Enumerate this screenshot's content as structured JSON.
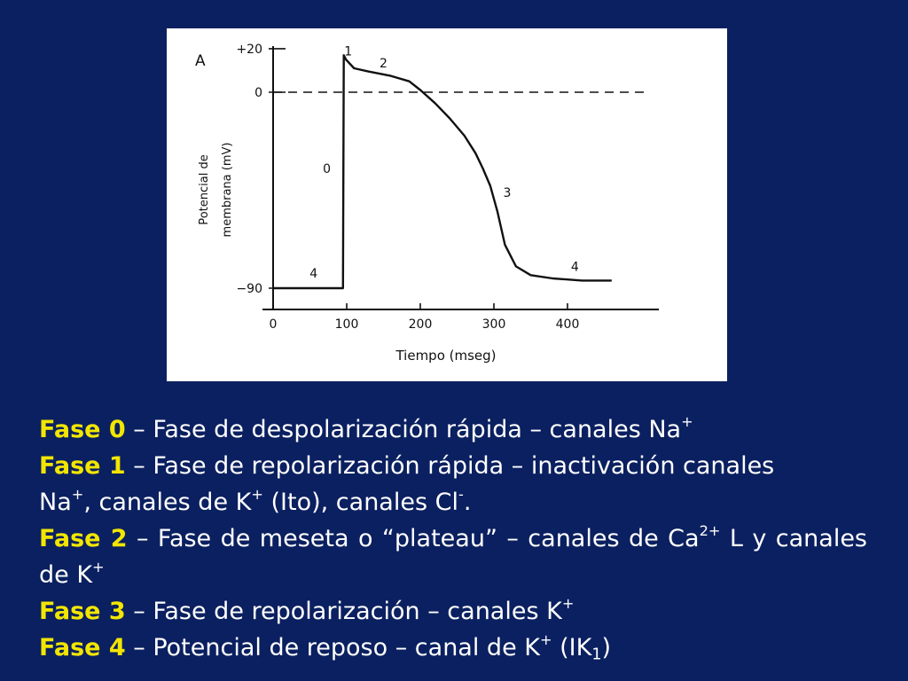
{
  "colors": {
    "background": "#0b2060",
    "phase_label": "#f2e600",
    "text": "#ffffff",
    "curve": "#111111"
  },
  "chart_data": {
    "type": "line",
    "panel_label": "A",
    "xlabel": "Tiempo (mseg)",
    "ylabel_line1": "Potencial de",
    "ylabel_line2": "membrana (mV)",
    "xlim": [
      0,
      500
    ],
    "ylim": [
      -90,
      20
    ],
    "x_ticks": [
      0,
      100,
      200,
      300,
      400
    ],
    "x_tick_labels": [
      "0",
      "100",
      "200",
      "300",
      "400"
    ],
    "y_ticks": [
      20,
      0,
      -90
    ],
    "y_tick_labels": [
      "+20",
      "0",
      "−90"
    ],
    "zero_line": "dashed",
    "grid": false,
    "series": [
      {
        "x": [
          0,
          95,
          96,
          99,
          110,
          130,
          160,
          185,
          200,
          220,
          240,
          260,
          275,
          285,
          295,
          305,
          315,
          330,
          350,
          380,
          400,
          420,
          440,
          460
        ],
        "y": [
          -90,
          -90,
          17,
          15,
          11,
          9.5,
          7.5,
          5,
          1,
          -5,
          -12,
          -20,
          -28,
          -35,
          -43,
          -55,
          -70,
          -80,
          -84,
          -85.5,
          -86,
          -86.5,
          -86.5,
          -86.5
        ]
      }
    ],
    "annotations": [
      {
        "text": "0",
        "x": 73,
        "y": -35
      },
      {
        "text": "1",
        "x": 102,
        "y": 19
      },
      {
        "text": "2",
        "x": 150,
        "y": 13.5
      },
      {
        "text": "3",
        "x": 318,
        "y": -46
      },
      {
        "text": "4",
        "x": 55,
        "y": -83
      },
      {
        "text": "4",
        "x": 410,
        "y": -80
      }
    ]
  },
  "phases": [
    {
      "label": "Fase 0",
      "text": " – Fase de despolarización rápida – canales Na",
      "sup": "+"
    },
    {
      "label": "Fase 1",
      "text1": " – Fase de repolarización rápida – inactivación canales",
      "text2": "Na",
      "sup1": "+",
      "text3": ", canales de K",
      "sup2": "+",
      "text4": " (Ito), canales Cl",
      "sup3": "-",
      "text5": "."
    },
    {
      "label": "Fase 2",
      "text1": " – Fase de meseta o “plateau” – canales de Ca",
      "sup1": "2+",
      "text2": " L y canales de K",
      "sup2": "+"
    },
    {
      "label": "Fase 3",
      "text": " – Fase de repolarización – canales K",
      "sup": "+"
    },
    {
      "label": "Fase 4",
      "text1": " – Potencial de reposo – canal de K",
      "sup": "+",
      "text2": " (IK",
      "sub": "1",
      "text3": ")"
    }
  ]
}
